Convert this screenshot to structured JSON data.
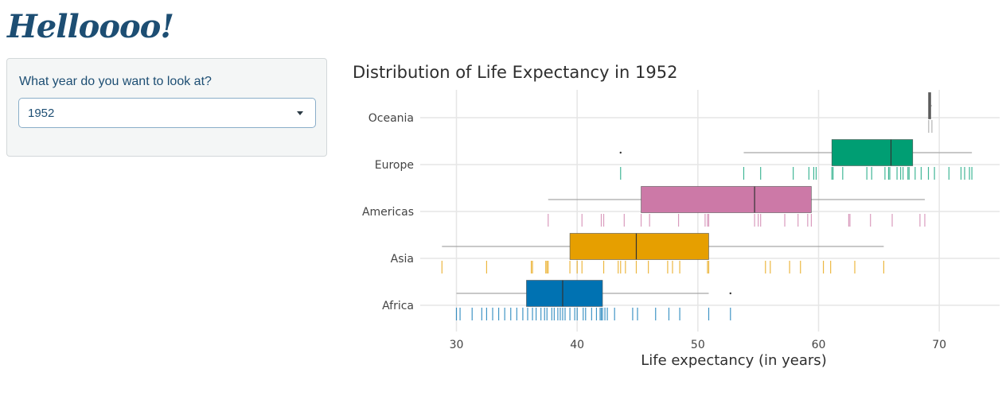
{
  "app": {
    "title": "Helloooo!"
  },
  "sidebar": {
    "label": "What year do you want to look at?",
    "select": {
      "value": "1952",
      "caret_icon": "chevron-down-icon"
    }
  },
  "chart_data": {
    "type": "boxplot",
    "title": "Distribution of Life Expectancy in 1952",
    "xlabel": "Life expectancy (in years)",
    "ylabel": "",
    "xlim": [
      27,
      75
    ],
    "xticks": [
      30,
      40,
      50,
      60,
      70
    ],
    "grid": true,
    "legend": "none",
    "categories": [
      "Africa",
      "Asia",
      "Americas",
      "Europe",
      "Oceania"
    ],
    "series": [
      {
        "category": "Africa",
        "color": "#0072b2",
        "whisker_low": 30.0,
        "q1": 35.8,
        "median": 38.8,
        "q3": 42.1,
        "whisker_high": 50.9,
        "outliers": [
          52.7
        ],
        "points": [
          30.0,
          30.3,
          31.3,
          32.1,
          32.5,
          33.0,
          33.5,
          34.0,
          34.5,
          35.0,
          35.5,
          35.9,
          36.3,
          36.6,
          37.0,
          37.3,
          37.5,
          37.9,
          38.1,
          38.4,
          38.6,
          38.8,
          39.0,
          39.4,
          39.8,
          40.0,
          40.5,
          40.7,
          41.2,
          41.6,
          41.9,
          42.0,
          42.1,
          42.3,
          42.5,
          43.1,
          44.6,
          45.0,
          46.5,
          47.6,
          48.5,
          50.9,
          52.7
        ]
      },
      {
        "category": "Asia",
        "color": "#e69f00",
        "whisker_low": 28.8,
        "q1": 39.4,
        "median": 44.9,
        "q3": 50.9,
        "whisker_high": 65.4,
        "outliers": [],
        "points": [
          28.8,
          32.5,
          36.2,
          36.3,
          37.4,
          37.5,
          37.6,
          39.4,
          40.0,
          40.4,
          42.2,
          43.4,
          43.6,
          44.0,
          44.9,
          45.9,
          47.5,
          47.9,
          48.5,
          50.8,
          50.9,
          55.6,
          56.0,
          57.6,
          58.5,
          60.4,
          61.0,
          63.0,
          65.4
        ]
      },
      {
        "category": "Americas",
        "color": "#cc79a7",
        "whisker_low": 37.6,
        "q1": 45.3,
        "median": 54.7,
        "q3": 59.4,
        "whisker_high": 68.8,
        "outliers": [],
        "points": [
          37.6,
          40.4,
          42.0,
          42.2,
          43.9,
          45.3,
          46.0,
          48.4,
          50.6,
          50.8,
          50.9,
          54.7,
          55.0,
          55.2,
          57.2,
          58.3,
          59.1,
          59.4,
          62.5,
          62.6,
          64.3,
          66.1,
          68.4,
          68.8
        ]
      },
      {
        "category": "Europe",
        "color": "#009e73",
        "whisker_low": 53.8,
        "q1": 61.1,
        "median": 66.0,
        "q3": 67.8,
        "whisker_high": 72.7,
        "outliers": [
          43.6
        ],
        "points": [
          43.6,
          53.8,
          55.2,
          57.9,
          59.2,
          59.6,
          59.8,
          61.1,
          61.2,
          62.0,
          64.0,
          64.4,
          65.5,
          65.8,
          65.9,
          66.5,
          66.8,
          67.0,
          67.4,
          67.5,
          68.0,
          68.5,
          69.1,
          69.6,
          70.8,
          71.8,
          72.1,
          72.5,
          72.7
        ]
      },
      {
        "category": "Oceania",
        "color": "#999999",
        "whisker_low": 69.1,
        "q1": 69.1,
        "median": 69.2,
        "q3": 69.3,
        "whisker_high": 69.4,
        "outliers": [],
        "points": [
          69.12,
          69.39
        ]
      }
    ]
  }
}
